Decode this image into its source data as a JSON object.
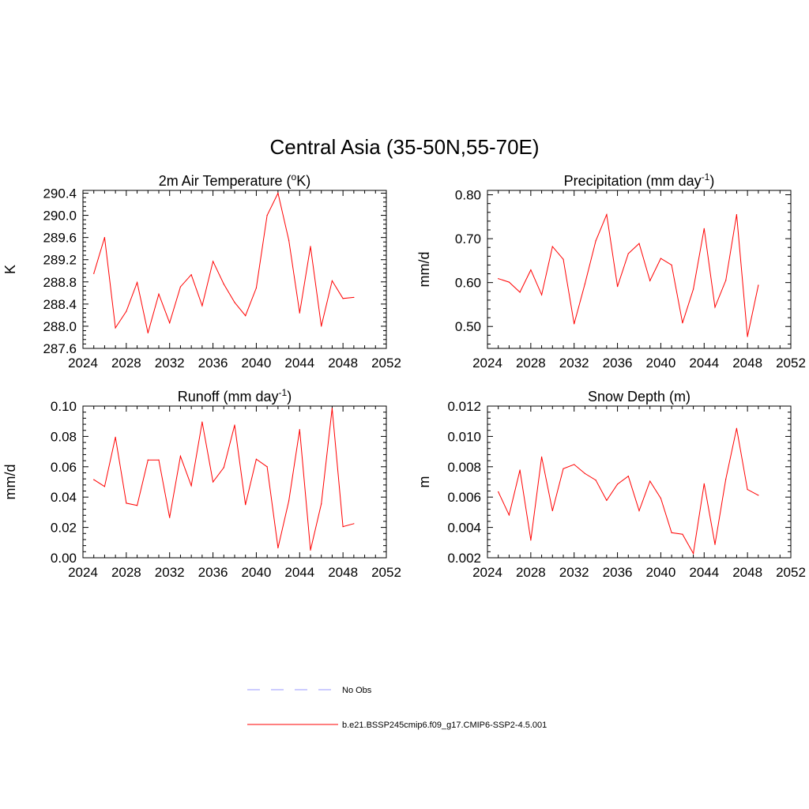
{
  "title": "Central Asia (35-50N,55-70E)",
  "legend": {
    "entries": [
      {
        "label": "No Obs",
        "color": "#9999ff",
        "style": "dashed"
      },
      {
        "label": "b.e21.BSSP245cmip6.f09_g17.CMIP6-SSP2-4.5.001",
        "color": "#ff0000",
        "style": "solid"
      }
    ]
  },
  "chart_data": [
    {
      "type": "line",
      "title_main": "2m Air Temperature (",
      "title_sup": "o",
      "title_end": "K)",
      "ylabel": "K",
      "xlim": [
        2024,
        2052
      ],
      "ylim": [
        287.6,
        290.45
      ],
      "xticks": [
        2024,
        2028,
        2032,
        2036,
        2040,
        2044,
        2048,
        2052
      ],
      "yticks": [
        "287.6",
        "288.0",
        "288.4",
        "288.8",
        "289.2",
        "289.6",
        "290.0",
        "290.4"
      ],
      "series": [
        {
          "color": "#ff0000",
          "x": [
            2025,
            2026,
            2027,
            2028,
            2029,
            2030,
            2031,
            2032,
            2033,
            2034,
            2035,
            2036,
            2037,
            2038,
            2039,
            2040,
            2041,
            2042,
            2043,
            2044,
            2045,
            2046,
            2047,
            2048,
            2049
          ],
          "values": [
            288.95,
            289.6,
            287.97,
            288.27,
            288.79,
            287.88,
            288.58,
            288.06,
            288.71,
            288.93,
            288.37,
            289.17,
            288.76,
            288.43,
            288.19,
            288.69,
            290.0,
            290.4,
            289.55,
            288.24,
            289.44,
            288.0,
            288.82,
            288.5,
            288.52
          ]
        }
      ]
    },
    {
      "type": "line",
      "title_main": "Precipitation (mm day",
      "title_sup": "-1",
      "title_end": ")",
      "ylabel": "mm/d",
      "xlim": [
        2024,
        2052
      ],
      "ylim": [
        0.45,
        0.81
      ],
      "xticks": [
        2024,
        2028,
        2032,
        2036,
        2040,
        2044,
        2048,
        2052
      ],
      "yticks": [
        "0.50",
        "0.60",
        "0.70",
        "0.80"
      ],
      "series": [
        {
          "color": "#ff0000",
          "x": [
            2025,
            2026,
            2027,
            2028,
            2029,
            2030,
            2031,
            2032,
            2033,
            2034,
            2035,
            2036,
            2037,
            2038,
            2039,
            2040,
            2041,
            2042,
            2043,
            2044,
            2045,
            2046,
            2047,
            2048,
            2049
          ],
          "values": [
            0.609,
            0.601,
            0.578,
            0.629,
            0.572,
            0.682,
            0.653,
            0.506,
            0.597,
            0.695,
            0.755,
            0.591,
            0.666,
            0.689,
            0.604,
            0.655,
            0.64,
            0.508,
            0.585,
            0.723,
            0.544,
            0.605,
            0.755,
            0.477,
            0.594
          ]
        }
      ]
    },
    {
      "type": "line",
      "title_main": "Runoff (mm day",
      "title_sup": "-1",
      "title_end": ")",
      "ylabel": "mm/d",
      "xlim": [
        2024,
        2052
      ],
      "ylim": [
        0.0,
        0.1
      ],
      "xticks": [
        2024,
        2028,
        2032,
        2036,
        2040,
        2044,
        2048,
        2052
      ],
      "yticks": [
        "0.00",
        "0.02",
        "0.04",
        "0.06",
        "0.08",
        "0.10"
      ],
      "series": [
        {
          "color": "#ff0000",
          "x": [
            2025,
            2026,
            2027,
            2028,
            2029,
            2030,
            2031,
            2032,
            2033,
            2034,
            2035,
            2036,
            2037,
            2038,
            2039,
            2040,
            2041,
            2042,
            2043,
            2044,
            2045,
            2046,
            2047,
            2048,
            2049
          ],
          "values": [
            0.0515,
            0.047,
            0.0795,
            0.036,
            0.0345,
            0.0645,
            0.0645,
            0.0265,
            0.067,
            0.0475,
            0.0895,
            0.05,
            0.0595,
            0.0875,
            0.035,
            0.065,
            0.06,
            0.0065,
            0.0375,
            0.0845,
            0.005,
            0.0355,
            0.0985,
            0.0205,
            0.0225
          ]
        }
      ]
    },
    {
      "type": "line",
      "title_main": "Snow Depth (m)",
      "title_sup": "",
      "title_end": "",
      "ylabel": "m",
      "xlim": [
        2024,
        2052
      ],
      "ylim": [
        0.002,
        0.012
      ],
      "xticks": [
        2024,
        2028,
        2032,
        2036,
        2040,
        2044,
        2048,
        2052
      ],
      "yticks": [
        "0.002",
        "0.004",
        "0.006",
        "0.008",
        "0.010",
        "0.012"
      ],
      "series": [
        {
          "color": "#ff0000",
          "x": [
            2025,
            2026,
            2027,
            2028,
            2029,
            2030,
            2031,
            2032,
            2033,
            2034,
            2035,
            2036,
            2037,
            2038,
            2039,
            2040,
            2041,
            2042,
            2043,
            2044,
            2045,
            2046,
            2047,
            2048,
            2049
          ],
          "values": [
            0.00635,
            0.00482,
            0.00778,
            0.00316,
            0.00865,
            0.0051,
            0.00787,
            0.00815,
            0.00755,
            0.00712,
            0.00578,
            0.00685,
            0.00738,
            0.0051,
            0.00705,
            0.00592,
            0.00365,
            0.00355,
            0.00228,
            0.00688,
            0.00288,
            0.00718,
            0.01053,
            0.0065,
            0.00612
          ]
        }
      ]
    }
  ]
}
